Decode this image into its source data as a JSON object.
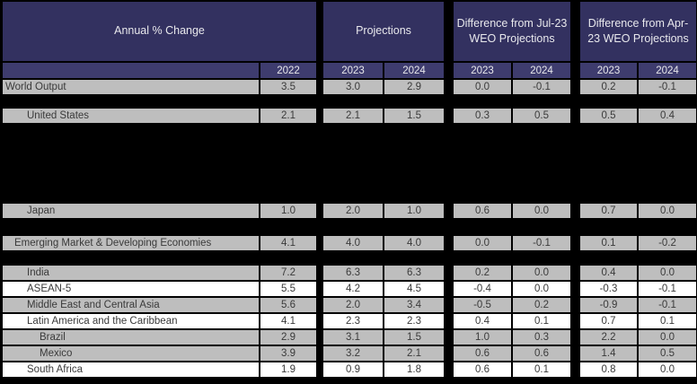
{
  "header": {
    "groups": [
      "Annual % Change",
      "Projections",
      "Difference from Jul-23 WEO Projections",
      "Difference from Apr-23 WEO Projections"
    ],
    "year_cols": [
      "2022",
      "2023",
      "2024",
      "2023",
      "2024",
      "2023",
      "2024"
    ]
  },
  "rows": [
    {
      "name": "World Output",
      "indent": 0,
      "shade": "gray",
      "gap_before": 0,
      "values": [
        "3.5",
        "3.0",
        "2.9",
        "0.0",
        "-0.1",
        "0.2",
        "-0.1"
      ]
    },
    {
      "name": "United States",
      "indent": 2,
      "shade": "gray",
      "gap_before": 14,
      "values": [
        "2.1",
        "2.1",
        "1.5",
        "0.3",
        "0.5",
        "0.5",
        "0.4"
      ]
    },
    {
      "name": "Japan",
      "indent": 2,
      "shade": "gray",
      "gap_before": 88,
      "values": [
        "1.0",
        "2.0",
        "1.0",
        "0.6",
        "0.0",
        "0.7",
        "0.0"
      ]
    },
    {
      "name": "Emerging Market & Developing Economies",
      "indent": 1,
      "shade": "gray",
      "gap_before": 18,
      "values": [
        "4.1",
        "4.0",
        "4.0",
        "0.0",
        "-0.1",
        "0.1",
        "-0.2"
      ]
    },
    {
      "name": "India",
      "indent": 2,
      "shade": "gray",
      "gap_before": 15,
      "values": [
        "7.2",
        "6.3",
        "6.3",
        "0.2",
        "0.0",
        "0.4",
        "0.0"
      ]
    },
    {
      "name": "ASEAN-5",
      "indent": 2,
      "shade": "white",
      "gap_before": 0,
      "values": [
        "5.5",
        "4.2",
        "4.5",
        "-0.4",
        "0.0",
        "-0.3",
        "-0.1"
      ]
    },
    {
      "name": "Middle East and Central Asia",
      "indent": 2,
      "shade": "gray",
      "gap_before": 0,
      "values": [
        "5.6",
        "2.0",
        "3.4",
        "-0.5",
        "0.2",
        "-0.9",
        "-0.1"
      ]
    },
    {
      "name": "Latin America and the Caribbean",
      "indent": 2,
      "shade": "white",
      "gap_before": 0,
      "values": [
        "4.1",
        "2.3",
        "2.3",
        "0.4",
        "0.1",
        "0.7",
        "0.1"
      ]
    },
    {
      "name": "Brazil",
      "indent": 3,
      "shade": "gray",
      "gap_before": 0,
      "values": [
        "2.9",
        "3.1",
        "1.5",
        "1.0",
        "0.3",
        "2.2",
        "0.0"
      ]
    },
    {
      "name": "Mexico",
      "indent": 3,
      "shade": "gray",
      "gap_before": 0,
      "values": [
        "3.9",
        "3.2",
        "2.1",
        "0.6",
        "0.6",
        "1.4",
        "0.5"
      ]
    },
    {
      "name": "South Africa",
      "indent": 2,
      "shade": "white",
      "gap_before": 0,
      "values": [
        "1.9",
        "0.9",
        "1.8",
        "0.6",
        "0.1",
        "0.8",
        "0.0"
      ]
    }
  ],
  "colors": {
    "background": "#000000",
    "header_bg": "#333160",
    "year_bg": "#3E3C6E",
    "header_text": "#E8E8EC",
    "row_gray": "#BEBEBE",
    "row_white": "#FFFFFF",
    "row_text": "#3A3A3A"
  }
}
